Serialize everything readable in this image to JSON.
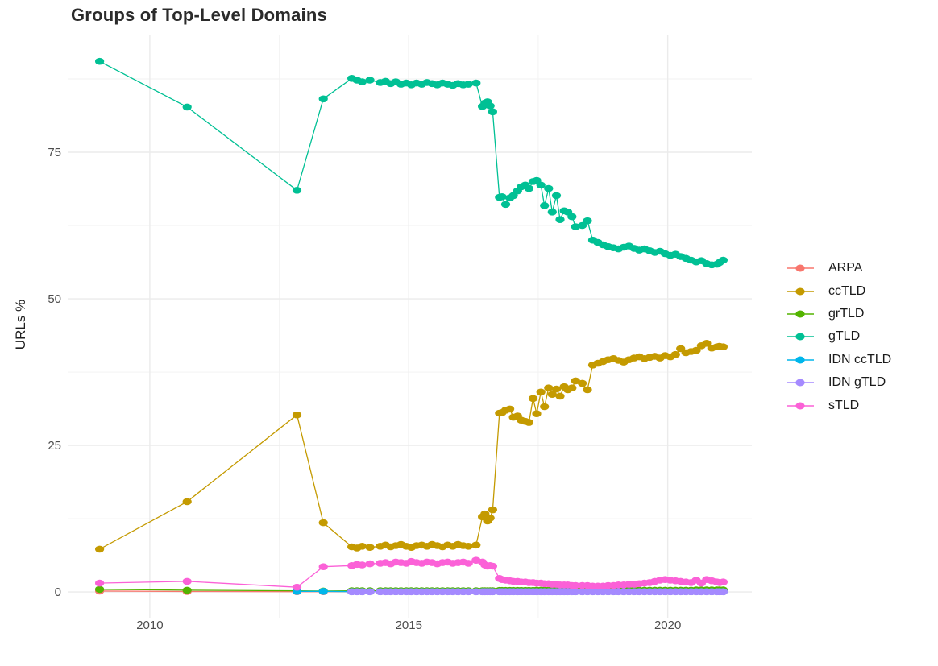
{
  "title": "Groups of Top-Level Domains",
  "axes": {
    "y_label": "URLs %",
    "y_ticks": [
      0,
      25,
      50,
      75
    ],
    "y_minor": [
      12.5,
      37.5,
      62.5,
      87.5
    ],
    "x_ticks": [
      2010,
      2015,
      2020
    ],
    "x_minor": [
      2012.5,
      2017.5
    ],
    "x_range": [
      2008.43,
      2021.67
    ],
    "y_range": [
      -4.5,
      95
    ],
    "grid_major_color": "#EBEBEB",
    "grid_minor_color": "#F2F2F2"
  },
  "chart_data": {
    "type": "line",
    "title": "Groups of Top-Level Domains",
    "xlabel": "",
    "ylabel": "URLs %",
    "legend_position": "right",
    "grid": true,
    "x": [
      2009.03,
      2010.72,
      2012.84,
      2013.35,
      2013.9,
      2014.0,
      2014.1,
      2014.25,
      2014.45,
      2014.55,
      2014.65,
      2014.75,
      2014.85,
      2014.95,
      2015.05,
      2015.15,
      2015.25,
      2015.35,
      2015.45,
      2015.55,
      2015.65,
      2015.75,
      2015.85,
      2015.95,
      2016.05,
      2016.15,
      2016.3,
      2016.42,
      2016.47,
      2016.52,
      2016.57,
      2016.62,
      2016.75,
      2016.8,
      2016.87,
      2016.95,
      2017.02,
      2017.1,
      2017.17,
      2017.25,
      2017.32,
      2017.4,
      2017.47,
      2017.55,
      2017.62,
      2017.7,
      2017.77,
      2017.85,
      2017.92,
      2018.0,
      2018.07,
      2018.15,
      2018.22,
      2018.35,
      2018.45,
      2018.55,
      2018.65,
      2018.75,
      2018.85,
      2018.95,
      2019.05,
      2019.15,
      2019.25,
      2019.35,
      2019.45,
      2019.55,
      2019.65,
      2019.75,
      2019.85,
      2019.95,
      2020.05,
      2020.15,
      2020.25,
      2020.35,
      2020.45,
      2020.55,
      2020.65,
      2020.75,
      2020.85,
      2020.95,
      2021.0,
      2021.07
    ],
    "series": [
      {
        "name": "ARPA",
        "color": "#F8766D",
        "values": [
          0.15,
          0.08,
          0.05,
          0.05,
          0.05,
          0.05,
          0.05,
          0.05,
          0.05,
          0.05,
          0.05,
          0.05,
          0.05,
          0.05,
          0.05,
          0.05,
          0.05,
          0.05,
          0.05,
          0.05,
          0.05,
          0.05,
          0.05,
          0.05,
          0.05,
          0.05,
          0.05,
          0.05,
          0.05,
          0.05,
          0.05,
          0.05,
          0.05,
          0.05,
          0.05,
          0.05,
          0.05,
          0.05,
          0.05,
          0.05,
          0.05,
          0.05,
          0.05,
          0.05,
          0.05,
          0.05,
          0.05,
          0.05,
          0.05,
          0.05,
          0.05,
          0.05,
          0.05,
          0.05,
          0.05,
          0.05,
          0.05,
          0.05,
          0.05,
          0.05,
          0.05,
          0.05,
          0.05,
          0.05,
          0.05,
          0.05,
          0.05,
          0.05,
          0.05,
          0.05,
          0.05,
          0.05,
          0.05,
          0.05,
          0.05,
          0.05,
          0.05,
          0.05,
          0.05,
          0.05,
          0.05,
          0.05
        ]
      },
      {
        "name": "ccTLD",
        "color": "#C49A00",
        "values": [
          7.3,
          15.4,
          30.2,
          11.8,
          7.7,
          7.5,
          7.8,
          7.6,
          7.8,
          8.0,
          7.7,
          7.9,
          8.1,
          7.8,
          7.6,
          7.9,
          8.0,
          7.8,
          8.1,
          7.9,
          7.7,
          8.0,
          7.8,
          8.1,
          7.9,
          7.8,
          8.0,
          12.8,
          13.3,
          12.1,
          12.6,
          14.0,
          30.5,
          30.6,
          31.0,
          31.2,
          29.8,
          30.0,
          29.3,
          29.1,
          28.9,
          33.0,
          30.4,
          34.1,
          31.6,
          34.8,
          33.7,
          34.6,
          33.4,
          35.0,
          34.5,
          34.8,
          36.0,
          35.6,
          34.5,
          38.7,
          39.0,
          39.3,
          39.6,
          39.8,
          39.5,
          39.2,
          39.6,
          39.9,
          40.1,
          39.8,
          40.0,
          40.2,
          39.9,
          40.3,
          40.1,
          40.5,
          41.5,
          40.8,
          41.0,
          41.2,
          42.0,
          42.4,
          41.6,
          41.8,
          41.9,
          41.8
        ]
      },
      {
        "name": "grTLD",
        "color": "#53B400",
        "values": [
          0.45,
          0.3,
          0.2,
          0.15,
          0.2,
          0.2,
          0.2,
          0.2,
          0.2,
          0.2,
          0.2,
          0.2,
          0.2,
          0.2,
          0.2,
          0.2,
          0.2,
          0.2,
          0.2,
          0.2,
          0.2,
          0.2,
          0.2,
          0.2,
          0.2,
          0.2,
          0.2,
          0.2,
          0.2,
          0.2,
          0.2,
          0.2,
          0.25,
          0.25,
          0.25,
          0.25,
          0.25,
          0.25,
          0.25,
          0.25,
          0.25,
          0.25,
          0.3,
          0.3,
          0.3,
          0.3,
          0.3,
          0.3,
          0.3,
          0.3,
          0.3,
          0.3,
          0.3,
          0.3,
          0.3,
          0.3,
          0.3,
          0.3,
          0.3,
          0.3,
          0.3,
          0.3,
          0.3,
          0.3,
          0.3,
          0.3,
          0.3,
          0.3,
          0.3,
          0.3,
          0.3,
          0.3,
          0.3,
          0.3,
          0.3,
          0.35,
          0.35,
          0.35,
          0.35,
          0.35,
          0.35,
          0.35
        ]
      },
      {
        "name": "gTLD",
        "color": "#00C094",
        "values": [
          90.5,
          82.7,
          68.5,
          84.1,
          87.6,
          87.3,
          87.0,
          87.3,
          86.9,
          87.1,
          86.7,
          87.0,
          86.6,
          86.8,
          86.5,
          86.8,
          86.6,
          86.9,
          86.7,
          86.5,
          86.8,
          86.6,
          86.4,
          86.7,
          86.5,
          86.6,
          86.8,
          82.8,
          83.4,
          83.6,
          82.9,
          81.9,
          67.3,
          67.4,
          66.1,
          67.2,
          67.6,
          68.4,
          69.1,
          69.4,
          68.8,
          70.0,
          70.2,
          69.4,
          65.9,
          68.8,
          64.8,
          67.6,
          63.5,
          65.0,
          64.8,
          64.0,
          62.3,
          62.5,
          63.3,
          60.0,
          59.6,
          59.2,
          58.9,
          58.7,
          58.5,
          58.8,
          59.0,
          58.6,
          58.3,
          58.5,
          58.2,
          57.9,
          58.1,
          57.7,
          57.4,
          57.6,
          57.2,
          56.9,
          56.6,
          56.3,
          56.5,
          56.0,
          55.8,
          55.9,
          56.2,
          56.6
        ]
      },
      {
        "name": "IDN ccTLD",
        "color": "#00B6EB",
        "values": [
          null,
          null,
          0.1,
          0.1,
          0.05,
          0.05,
          0.05,
          0.05,
          0.05,
          0.05,
          0.05,
          0.05,
          0.05,
          0.05,
          0.05,
          0.05,
          0.05,
          0.05,
          0.05,
          0.05,
          0.05,
          0.05,
          0.05,
          0.05,
          0.05,
          0.05,
          0.05,
          0.05,
          0.05,
          0.05,
          0.05,
          0.05,
          0.05,
          0.05,
          0.05,
          0.05,
          0.05,
          0.05,
          0.05,
          0.05,
          0.05,
          0.05,
          0.05,
          0.05,
          0.05,
          0.05,
          0.05,
          0.05,
          0.05,
          0.05,
          0.05,
          0.05,
          0.05,
          0.05,
          0.05,
          0.05,
          0.05,
          0.05,
          0.05,
          0.05,
          0.05,
          0.05,
          0.05,
          0.05,
          0.05,
          0.05,
          0.05,
          0.05,
          0.05,
          0.05,
          0.05,
          0.05,
          0.05,
          0.05,
          0.05,
          0.05,
          0.05,
          0.05,
          0.05,
          0.05,
          0.05,
          0.05
        ]
      },
      {
        "name": "IDN gTLD",
        "color": "#A58AFF",
        "values": [
          null,
          null,
          null,
          null,
          0.03,
          0.03,
          0.03,
          0.03,
          0.03,
          0.03,
          0.03,
          0.03,
          0.03,
          0.03,
          0.03,
          0.03,
          0.03,
          0.03,
          0.03,
          0.03,
          0.03,
          0.03,
          0.03,
          0.03,
          0.03,
          0.03,
          0.03,
          0.03,
          0.03,
          0.03,
          0.03,
          0.03,
          0.03,
          0.03,
          0.03,
          0.03,
          0.03,
          0.03,
          0.03,
          0.03,
          0.03,
          0.03,
          0.03,
          0.03,
          0.03,
          0.03,
          0.03,
          0.03,
          0.03,
          0.03,
          0.03,
          0.03,
          0.03,
          0.03,
          0.03,
          0.03,
          0.03,
          0.03,
          0.03,
          0.03,
          0.03,
          0.03,
          0.03,
          0.03,
          0.03,
          0.03,
          0.03,
          0.03,
          0.03,
          0.03,
          0.03,
          0.03,
          0.03,
          0.03,
          0.03,
          0.03,
          0.03,
          0.03,
          0.03,
          0.03,
          0.03,
          0.03
        ]
      },
      {
        "name": "sTLD",
        "color": "#FB61D7",
        "values": [
          1.5,
          1.8,
          0.8,
          4.3,
          4.5,
          4.7,
          4.6,
          4.8,
          4.9,
          5.0,
          4.8,
          5.1,
          5.0,
          4.9,
          5.2,
          5.0,
          4.9,
          5.1,
          5.0,
          4.8,
          5.0,
          5.1,
          4.9,
          5.0,
          5.1,
          4.9,
          5.4,
          5.1,
          4.6,
          4.4,
          4.5,
          4.4,
          2.3,
          2.1,
          2.0,
          1.9,
          1.8,
          1.8,
          1.7,
          1.7,
          1.6,
          1.6,
          1.5,
          1.5,
          1.4,
          1.4,
          1.3,
          1.3,
          1.2,
          1.2,
          1.2,
          1.1,
          1.1,
          1.1,
          1.1,
          1.0,
          1.0,
          1.0,
          1.1,
          1.1,
          1.2,
          1.2,
          1.3,
          1.3,
          1.4,
          1.5,
          1.6,
          1.8,
          2.0,
          2.1,
          2.0,
          1.9,
          1.8,
          1.7,
          1.6,
          2.0,
          1.5,
          2.1,
          1.9,
          1.7,
          1.6,
          1.7
        ]
      }
    ]
  }
}
